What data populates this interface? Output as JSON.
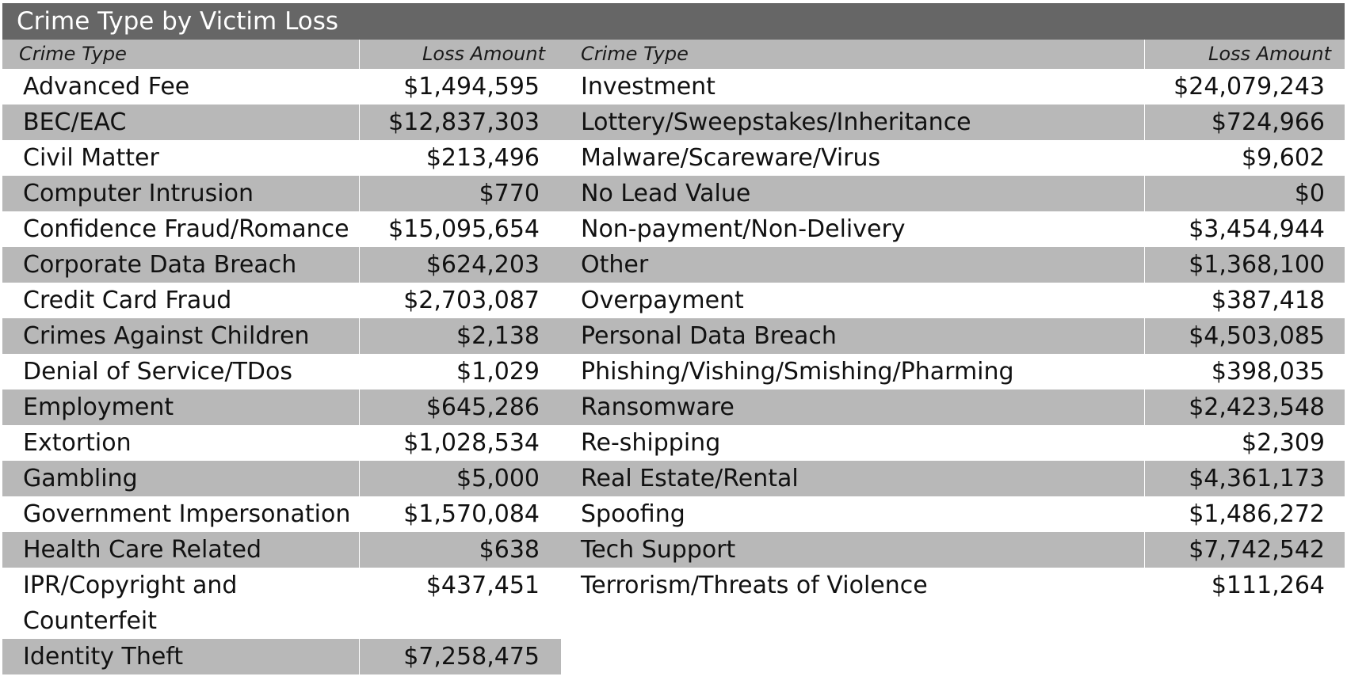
{
  "title": "Crime Type by Victim Loss",
  "headers": {
    "crime_type": "Crime Type",
    "loss_amount": "Loss Amount"
  },
  "colors": {
    "title_bg": "#666666",
    "header_bg": "#b8b8b8",
    "shaded_row_bg": "#b8b8b8",
    "title_text": "#ffffff"
  },
  "left_rows": [
    {
      "type": "Advanced Fee",
      "loss": "$1,494,595"
    },
    {
      "type": "BEC/EAC",
      "loss": "$12,837,303"
    },
    {
      "type": "Civil Matter",
      "loss": "$213,496"
    },
    {
      "type": "Computer Intrusion",
      "loss": "$770"
    },
    {
      "type": "Confidence Fraud/Romance",
      "loss": "$15,095,654"
    },
    {
      "type": "Corporate Data Breach",
      "loss": "$624,203"
    },
    {
      "type": "Credit Card Fraud",
      "loss": "$2,703,087"
    },
    {
      "type": "Crimes Against Children",
      "loss": "$2,138"
    },
    {
      "type": "Denial of Service/TDos",
      "loss": "$1,029"
    },
    {
      "type": "Employment",
      "loss": "$645,286"
    },
    {
      "type": "Extortion",
      "loss": "$1,028,534"
    },
    {
      "type": "Gambling",
      "loss": "$5,000"
    },
    {
      "type": "Government Impersonation",
      "loss": "$1,570,084"
    },
    {
      "type": "Health Care Related",
      "loss": "$638"
    },
    {
      "type": "IPR/Copyright and Counterfeit",
      "loss": "$437,451"
    },
    {
      "type": "Identity Theft",
      "loss": "$7,258,475"
    }
  ],
  "right_rows": [
    {
      "type": "Investment",
      "loss": "$24,079,243"
    },
    {
      "type": "Lottery/Sweepstakes/Inheritance",
      "loss": "$724,966"
    },
    {
      "type": "Malware/Scareware/Virus",
      "loss": "$9,602"
    },
    {
      "type": "No Lead Value",
      "loss": "$0"
    },
    {
      "type": "Non-payment/Non-Delivery",
      "loss": "$3,454,944"
    },
    {
      "type": "Other",
      "loss": "$1,368,100"
    },
    {
      "type": "Overpayment",
      "loss": "$387,418"
    },
    {
      "type": "Personal Data Breach",
      "loss": "$4,503,085"
    },
    {
      "type": "Phishing/Vishing/Smishing/Pharming",
      "loss": "$398,035"
    },
    {
      "type": "Ransomware",
      "loss": "$2,423,548"
    },
    {
      "type": "Re-shipping",
      "loss": "$2,309"
    },
    {
      "type": "Real Estate/Rental",
      "loss": "$4,361,173"
    },
    {
      "type": "Spoofing",
      "loss": "$1,486,272"
    },
    {
      "type": "Tech Support",
      "loss": "$7,742,542"
    },
    {
      "type": "Terrorism/Threats of Violence",
      "loss": "$111,264"
    }
  ]
}
